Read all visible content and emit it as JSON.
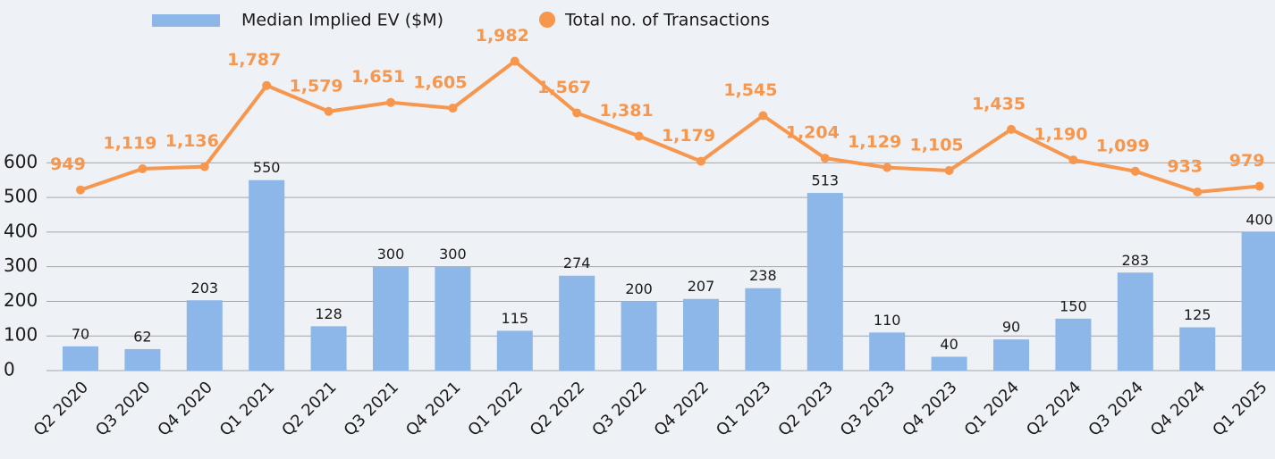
{
  "chart_data": {
    "type": "combo",
    "categories": [
      "Q2 2020",
      "Q3 2020",
      "Q4 2020",
      "Q1 2021",
      "Q2 2021",
      "Q3 2021",
      "Q4 2021",
      "Q1 2022",
      "Q2 2022",
      "Q3 2022",
      "Q4 2022",
      "Q1 2023",
      "Q2 2023",
      "Q3 2023",
      "Q4 2023",
      "Q1 2024",
      "Q2 2024",
      "Q3 2024",
      "Q4 2024",
      "Q1 2025"
    ],
    "series": [
      {
        "name": "Median Implied EV ($M)",
        "type": "bar",
        "color": "#8db7e8",
        "values": [
          70,
          62,
          203,
          550,
          128,
          300,
          300,
          115,
          274,
          200,
          207,
          238,
          513,
          110,
          40,
          90,
          150,
          283,
          125,
          400
        ]
      },
      {
        "name": "Total no. of Transactions",
        "type": "line",
        "axis": "y2",
        "color": "#f7964d",
        "values": [
          949,
          1119,
          1136,
          1787,
          1579,
          1651,
          1605,
          1982,
          1567,
          1381,
          1179,
          1545,
          1204,
          1129,
          1105,
          1435,
          1190,
          1099,
          933,
          979
        ],
        "value_labels": [
          "949",
          "1,119",
          "1,136",
          "1,787",
          "1,579",
          "1,651",
          "1,605",
          "1,982",
          "1,567",
          "1,381",
          "1,179",
          "1,545",
          "1,204",
          "1,129",
          "1,105",
          "1,435",
          "1,190",
          "1,099",
          "933",
          "979"
        ]
      }
    ],
    "ylim": [
      0,
      900
    ],
    "yticks": [
      0,
      100,
      200,
      300,
      400,
      500,
      600
    ],
    "y2lim": [
      -500,
      2000
    ],
    "grid": true
  }
}
